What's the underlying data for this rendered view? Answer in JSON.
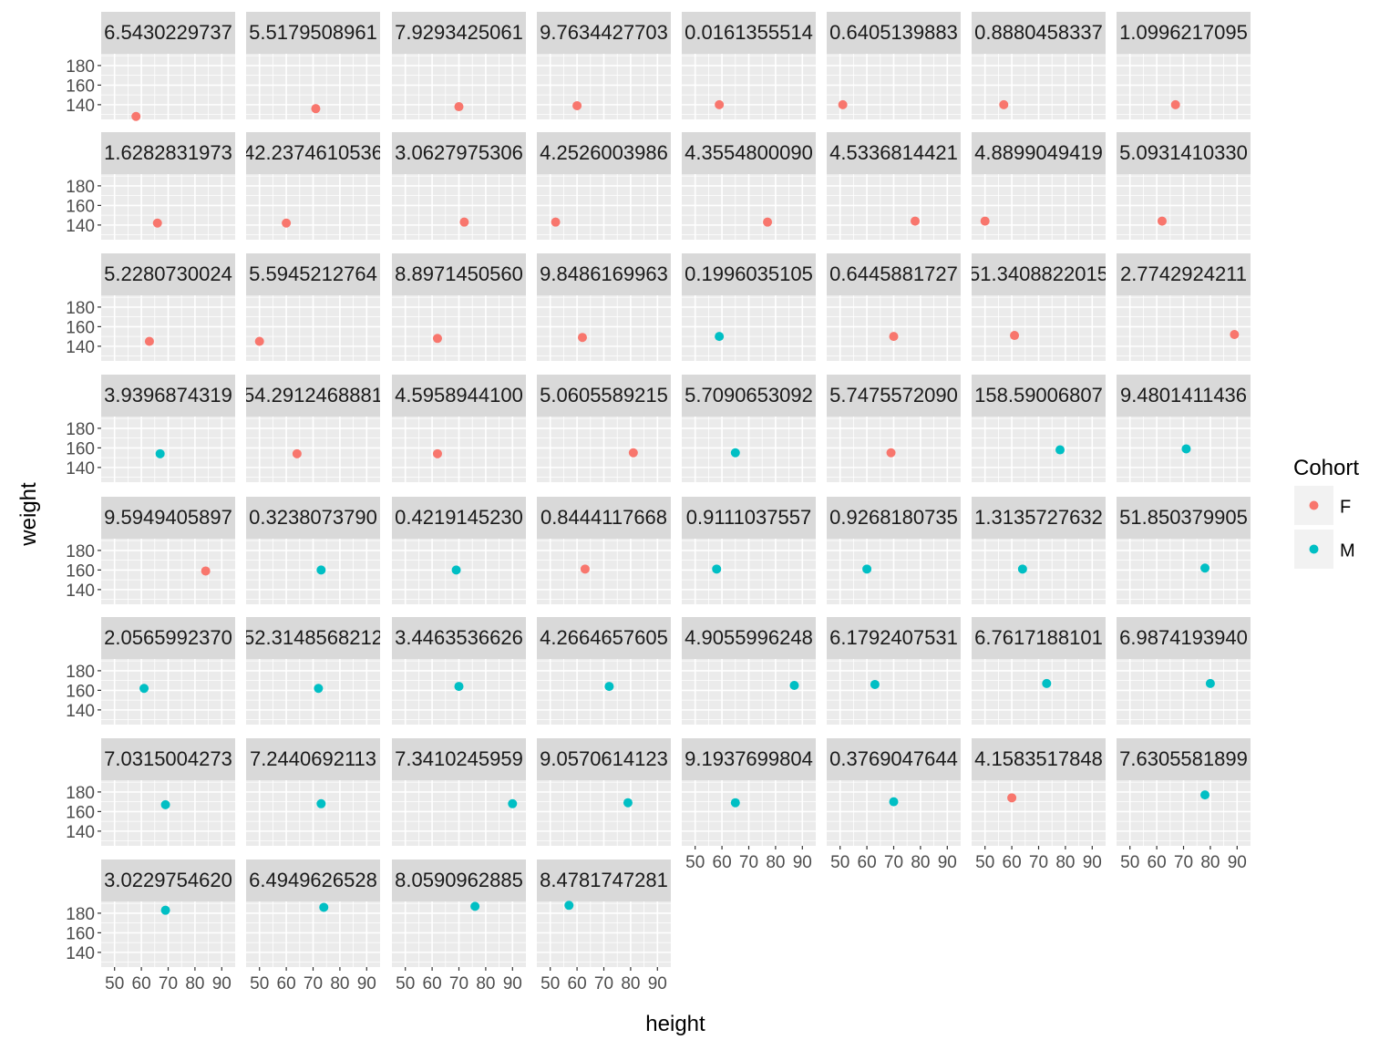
{
  "chart_data": {
    "type": "scatter",
    "facet_layout": "wrap",
    "x_label": "height",
    "y_label": "weight",
    "xlim": [
      45,
      95
    ],
    "ylim": [
      125,
      192
    ],
    "x_ticks": [
      50,
      60,
      70,
      80,
      90
    ],
    "y_ticks": [
      140,
      160,
      180
    ],
    "grid": true,
    "legend": {
      "title": "Cohort",
      "placement": "right",
      "entries": [
        {
          "label": "F",
          "color": "#F8766D"
        },
        {
          "label": "M",
          "color": "#00BFC4"
        }
      ]
    },
    "facets": [
      {
        "label": "6.5430229737",
        "x": 58,
        "y": 128,
        "cohort": "F"
      },
      {
        "label": "5.5179508961",
        "x": 71,
        "y": 136,
        "cohort": "F"
      },
      {
        "label": "7.9293425061",
        "x": 70,
        "y": 138,
        "cohort": "F"
      },
      {
        "label": "9.7634427703",
        "x": 60,
        "y": 139,
        "cohort": "F"
      },
      {
        "label": "0.0161355514",
        "x": 59,
        "y": 140,
        "cohort": "F"
      },
      {
        "label": "0.6405139883",
        "x": 51,
        "y": 140,
        "cohort": "F"
      },
      {
        "label": "0.8880458337",
        "x": 57,
        "y": 140,
        "cohort": "F"
      },
      {
        "label": "1.0996217095",
        "x": 67,
        "y": 140,
        "cohort": "F"
      },
      {
        "label": "1.6282831973",
        "x": 66,
        "y": 142,
        "cohort": "F"
      },
      {
        "label": "42.2374610536",
        "x": 60,
        "y": 142,
        "cohort": "F"
      },
      {
        "label": "3.0627975306",
        "x": 72,
        "y": 143,
        "cohort": "F"
      },
      {
        "label": "4.2526003986",
        "x": 52,
        "y": 143,
        "cohort": "F"
      },
      {
        "label": "4.3554800090",
        "x": 77,
        "y": 143,
        "cohort": "F"
      },
      {
        "label": "4.5336814421",
        "x": 78,
        "y": 144,
        "cohort": "F"
      },
      {
        "label": "4.8899049419",
        "x": 50,
        "y": 144,
        "cohort": "F"
      },
      {
        "label": "5.0931410330",
        "x": 62,
        "y": 144,
        "cohort": "F"
      },
      {
        "label": "5.2280730024",
        "x": 63,
        "y": 145,
        "cohort": "F"
      },
      {
        "label": "5.5945212764",
        "x": 50,
        "y": 145,
        "cohort": "F"
      },
      {
        "label": "8.8971450560",
        "x": 62,
        "y": 148,
        "cohort": "F"
      },
      {
        "label": "9.8486169963",
        "x": 62,
        "y": 149,
        "cohort": "F"
      },
      {
        "label": "0.1996035105",
        "x": 59,
        "y": 150,
        "cohort": "M"
      },
      {
        "label": "0.6445881727",
        "x": 70,
        "y": 150,
        "cohort": "F"
      },
      {
        "label": "51.3408822015",
        "x": 61,
        "y": 151,
        "cohort": "F"
      },
      {
        "label": "2.7742924211",
        "x": 89,
        "y": 152,
        "cohort": "F"
      },
      {
        "label": "3.9396874319",
        "x": 67,
        "y": 154,
        "cohort": "M"
      },
      {
        "label": "54.2912468881",
        "x": 64,
        "y": 154,
        "cohort": "F"
      },
      {
        "label": "4.5958944100",
        "x": 62,
        "y": 154,
        "cohort": "F"
      },
      {
        "label": "5.0605589215",
        "x": 81,
        "y": 155,
        "cohort": "F"
      },
      {
        "label": "5.7090653092",
        "x": 65,
        "y": 155,
        "cohort": "M"
      },
      {
        "label": "5.7475572090",
        "x": 69,
        "y": 155,
        "cohort": "F"
      },
      {
        "label": "158.59006807",
        "x": 78,
        "y": 158,
        "cohort": "M"
      },
      {
        "label": "9.4801411436",
        "x": 71,
        "y": 159,
        "cohort": "M"
      },
      {
        "label": "9.5949405897",
        "x": 84,
        "y": 159,
        "cohort": "F"
      },
      {
        "label": "0.3238073790",
        "x": 73,
        "y": 160,
        "cohort": "M"
      },
      {
        "label": "0.4219145230",
        "x": 69,
        "y": 160,
        "cohort": "M"
      },
      {
        "label": "0.8444117668",
        "x": 63,
        "y": 161,
        "cohort": "F"
      },
      {
        "label": "0.9111037557",
        "x": 58,
        "y": 161,
        "cohort": "M"
      },
      {
        "label": "0.9268180735",
        "x": 60,
        "y": 161,
        "cohort": "M"
      },
      {
        "label": "1.3135727632",
        "x": 64,
        "y": 161,
        "cohort": "M"
      },
      {
        "label": "51.850379905",
        "x": 78,
        "y": 162,
        "cohort": "M"
      },
      {
        "label": "2.0565992370",
        "x": 61,
        "y": 162,
        "cohort": "M"
      },
      {
        "label": "52.3148568212",
        "x": 72,
        "y": 162,
        "cohort": "M"
      },
      {
        "label": "3.4463536626",
        "x": 70,
        "y": 164,
        "cohort": "M"
      },
      {
        "label": "4.2664657605",
        "x": 72,
        "y": 164,
        "cohort": "M"
      },
      {
        "label": "4.9055996248",
        "x": 87,
        "y": 165,
        "cohort": "M"
      },
      {
        "label": "6.1792407531",
        "x": 63,
        "y": 166,
        "cohort": "M"
      },
      {
        "label": "6.7617188101",
        "x": 73,
        "y": 167,
        "cohort": "M"
      },
      {
        "label": "6.9874193940",
        "x": 80,
        "y": 167,
        "cohort": "M"
      },
      {
        "label": "7.0315004273",
        "x": 69,
        "y": 167,
        "cohort": "M"
      },
      {
        "label": "7.2440692113",
        "x": 73,
        "y": 168,
        "cohort": "M"
      },
      {
        "label": "7.3410245959",
        "x": 90,
        "y": 168,
        "cohort": "M"
      },
      {
        "label": "9.0570614123",
        "x": 79,
        "y": 169,
        "cohort": "M"
      },
      {
        "label": "9.1937699804",
        "x": 65,
        "y": 169,
        "cohort": "M"
      },
      {
        "label": "0.3769047644",
        "x": 70,
        "y": 170,
        "cohort": "M"
      },
      {
        "label": "4.1583517848",
        "x": 60,
        "y": 174,
        "cohort": "F"
      },
      {
        "label": "7.6305581899",
        "x": 78,
        "y": 177,
        "cohort": "M"
      },
      {
        "label": "3.0229754620",
        "x": 69,
        "y": 183,
        "cohort": "M"
      },
      {
        "label": "6.4949626528",
        "x": 74,
        "y": 186,
        "cohort": "M"
      },
      {
        "label": "8.0590962885",
        "x": 76,
        "y": 187,
        "cohort": "M"
      },
      {
        "label": "8.4781747281",
        "x": 57,
        "y": 188,
        "cohort": "M"
      }
    ]
  }
}
